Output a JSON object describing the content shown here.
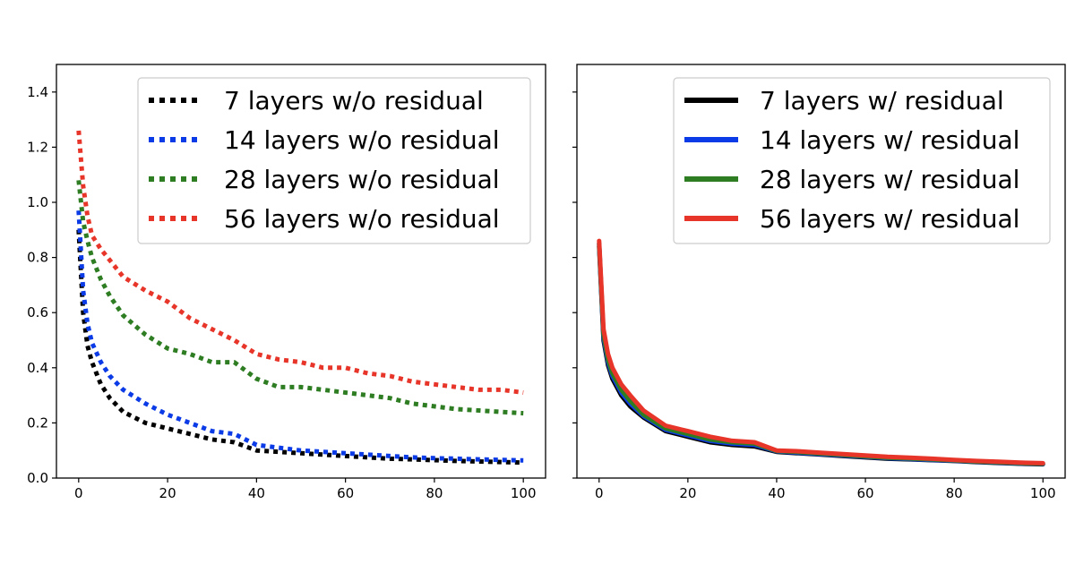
{
  "chart_data": [
    {
      "type": "line",
      "title": "",
      "xlabel": "",
      "ylabel": "",
      "xlim": [
        -5,
        105
      ],
      "ylim": [
        0.0,
        1.5
      ],
      "xticks": [
        "0",
        "20",
        "40",
        "60",
        "80",
        "100"
      ],
      "yticks": [
        "0.0",
        "0.2",
        "0.4",
        "0.6",
        "0.8",
        "1.0",
        "1.2",
        "1.4"
      ],
      "grid": false,
      "legend_position": "top-right",
      "line_style": "dotted",
      "x": [
        0,
        1,
        2,
        3,
        5,
        7,
        10,
        15,
        20,
        25,
        30,
        35,
        40,
        45,
        50,
        55,
        60,
        65,
        70,
        75,
        80,
        85,
        90,
        95,
        100
      ],
      "series": [
        {
          "name": "7 layers w/o residual",
          "color": "#000000",
          "values": [
            0.9,
            0.6,
            0.48,
            0.42,
            0.34,
            0.29,
            0.24,
            0.2,
            0.18,
            0.16,
            0.14,
            0.13,
            0.1,
            0.095,
            0.09,
            0.085,
            0.08,
            0.075,
            0.07,
            0.068,
            0.065,
            0.062,
            0.06,
            0.058,
            0.056
          ]
        },
        {
          "name": "14 layers w/o residual",
          "color": "#0b3be6",
          "values": [
            0.97,
            0.68,
            0.56,
            0.49,
            0.42,
            0.37,
            0.32,
            0.27,
            0.23,
            0.2,
            0.17,
            0.16,
            0.12,
            0.11,
            0.1,
            0.095,
            0.09,
            0.085,
            0.08,
            0.075,
            0.072,
            0.07,
            0.068,
            0.066,
            0.064
          ]
        },
        {
          "name": "28 layers w/o residual",
          "color": "#2e7d22",
          "values": [
            1.08,
            0.93,
            0.86,
            0.8,
            0.72,
            0.66,
            0.59,
            0.52,
            0.47,
            0.45,
            0.42,
            0.42,
            0.36,
            0.33,
            0.33,
            0.32,
            0.31,
            0.3,
            0.29,
            0.27,
            0.26,
            0.25,
            0.245,
            0.24,
            0.235
          ]
        },
        {
          "name": "56 layers w/o residual",
          "color": "#e8352a",
          "values": [
            1.26,
            1.06,
            0.95,
            0.88,
            0.83,
            0.79,
            0.73,
            0.68,
            0.64,
            0.58,
            0.54,
            0.5,
            0.45,
            0.43,
            0.42,
            0.4,
            0.4,
            0.38,
            0.37,
            0.35,
            0.34,
            0.33,
            0.32,
            0.32,
            0.31
          ]
        }
      ]
    },
    {
      "type": "line",
      "title": "",
      "xlabel": "",
      "ylabel": "",
      "xlim": [
        -5,
        105
      ],
      "ylim": [
        0.0,
        1.5
      ],
      "xticks": [
        "0",
        "20",
        "40",
        "60",
        "80",
        "100"
      ],
      "yticks": [],
      "grid": false,
      "legend_position": "top-right",
      "line_style": "solid",
      "x": [
        0,
        1,
        2,
        3,
        5,
        7,
        10,
        15,
        20,
        25,
        30,
        35,
        40,
        45,
        50,
        55,
        60,
        65,
        70,
        75,
        80,
        85,
        90,
        95,
        100
      ],
      "series": [
        {
          "name": "7 layers w/ residual",
          "color": "#000000",
          "values": [
            0.84,
            0.5,
            0.41,
            0.36,
            0.3,
            0.26,
            0.22,
            0.17,
            0.15,
            0.13,
            0.12,
            0.115,
            0.095,
            0.09,
            0.085,
            0.08,
            0.075,
            0.07,
            0.068,
            0.065,
            0.062,
            0.058,
            0.055,
            0.052,
            0.05
          ]
        },
        {
          "name": "14 layers w/ residual",
          "color": "#0b3be6",
          "values": [
            0.85,
            0.51,
            0.42,
            0.37,
            0.31,
            0.27,
            0.225,
            0.175,
            0.155,
            0.135,
            0.125,
            0.12,
            0.097,
            0.092,
            0.087,
            0.082,
            0.077,
            0.072,
            0.069,
            0.066,
            0.063,
            0.059,
            0.056,
            0.053,
            0.051
          ]
        },
        {
          "name": "28 layers w/ residual",
          "color": "#2e7d22",
          "values": [
            0.85,
            0.52,
            0.43,
            0.38,
            0.32,
            0.28,
            0.23,
            0.18,
            0.16,
            0.14,
            0.13,
            0.125,
            0.098,
            0.094,
            0.089,
            0.084,
            0.079,
            0.074,
            0.071,
            0.068,
            0.064,
            0.06,
            0.057,
            0.054,
            0.052
          ]
        },
        {
          "name": "56 layers w/ residual",
          "color": "#e8352a",
          "values": [
            0.86,
            0.54,
            0.45,
            0.4,
            0.34,
            0.3,
            0.245,
            0.19,
            0.17,
            0.15,
            0.135,
            0.13,
            0.1,
            0.097,
            0.092,
            0.087,
            0.082,
            0.077,
            0.074,
            0.07,
            0.066,
            0.062,
            0.059,
            0.056,
            0.054
          ]
        }
      ]
    }
  ]
}
